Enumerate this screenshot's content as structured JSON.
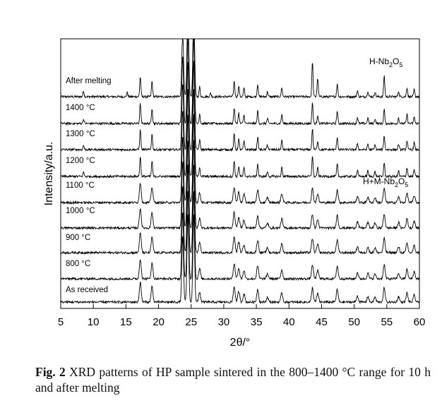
{
  "chart_data": {
    "type": "line",
    "xlabel": "2θ/°",
    "ylabel": "Intensity/a.u.",
    "xlim": [
      5,
      60
    ],
    "xticks": [
      5,
      10,
      15,
      20,
      25,
      30,
      35,
      40,
      45,
      50,
      55,
      60
    ],
    "grid": false,
    "series": [
      {
        "name": "After melting"
      },
      {
        "name": "1400 °C"
      },
      {
        "name": "1300 °C"
      },
      {
        "name": "1200 °C"
      },
      {
        "name": "1100 °C"
      },
      {
        "name": "1000 °C"
      },
      {
        "name": "900 °C"
      },
      {
        "name": "800 °C"
      },
      {
        "name": "As received"
      }
    ],
    "peaks_2theta": [
      17.2,
      19.0,
      23.7,
      24.5,
      25.4,
      26.3,
      31.6,
      32.3,
      33.1,
      35.2,
      36.7,
      38.9,
      43.6,
      44.4,
      47.4,
      50.5,
      52.1,
      53.2,
      54.6,
      56.8,
      58.1,
      59.2
    ],
    "annotations": {
      "h_phase": "H-Nb",
      "hm_phase": "H+M-Nb",
      "o2": "2",
      "o5": "5",
      "oxygen": "O"
    }
  },
  "caption": {
    "label": "Fig. 2",
    "text": "XRD patterns of HP sample sintered in the 800–1400 °C range for 10 h and after melting"
  }
}
